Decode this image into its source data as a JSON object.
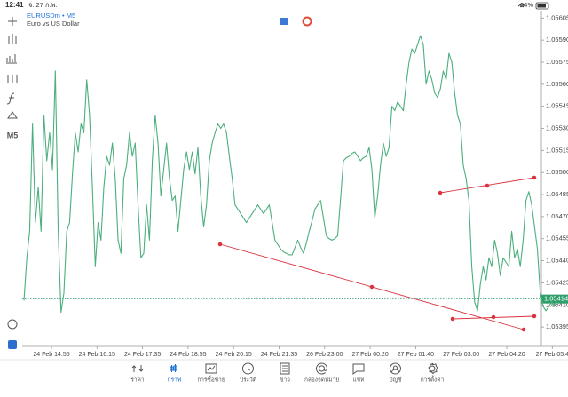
{
  "status_bar": {
    "time": "12:41",
    "date": "จ. 27 ก.พ.",
    "battery": "84%"
  },
  "toolbar": {
    "timeframe": "M5"
  },
  "chart_data": {
    "type": "line",
    "title": "EURUSDm • M5",
    "subtitle": "Euro vs US Dollar",
    "color": "#4caf7d",
    "values": [
      1.05413,
      1.05442,
      1.0546,
      1.05533,
      1.05466,
      1.0549,
      1.0546,
      1.05539,
      1.05508,
      1.05527,
      1.05502,
      1.05569,
      1.0546,
      1.05405,
      1.05418,
      1.0546,
      1.05466,
      1.05499,
      1.05527,
      1.05514,
      1.05533,
      1.05527,
      1.05563,
      1.05539,
      1.0549,
      1.05436,
      1.05466,
      1.05454,
      1.0549,
      1.05511,
      1.05505,
      1.0552,
      1.05496,
      1.05454,
      1.05445,
      1.05496,
      1.05505,
      1.05527,
      1.05511,
      1.0552,
      1.05478,
      1.05442,
      1.05445,
      1.05478,
      1.05454,
      1.05508,
      1.05539,
      1.0552,
      1.05484,
      1.05502,
      1.0552,
      1.05496,
      1.05481,
      1.05484,
      1.0546,
      1.05481,
      1.05502,
      1.05514,
      1.05502,
      1.05514,
      1.05499,
      1.05517,
      1.05484,
      1.05463,
      1.05478,
      1.05508,
      1.0552,
      1.05527,
      1.05533,
      1.0553,
      1.05533,
      1.05527,
      1.05511,
      1.05496,
      1.05478,
      1.05475,
      1.05472,
      1.05469,
      1.05466,
      1.05469,
      1.05472,
      1.05475,
      1.05478,
      1.05475,
      1.05472,
      1.05475,
      1.05478,
      1.05466,
      1.05454,
      1.05451,
      1.05448,
      1.05446,
      1.05445,
      1.05444,
      1.05444,
      1.05449,
      1.05454,
      1.05449,
      1.05445,
      1.05452,
      1.0546,
      1.05467,
      1.05475,
      1.05478,
      1.05481,
      1.05469,
      1.05457,
      1.05455,
      1.05454,
      1.05455,
      1.05457,
      1.05482,
      1.05508,
      1.0551,
      1.05511,
      1.05513,
      1.05514,
      1.05511,
      1.05508,
      1.0551,
      1.05511,
      1.05517,
      1.05502,
      1.05469,
      1.05484,
      1.05505,
      1.0552,
      1.05511,
      1.05517,
      1.05545,
      1.05542,
      1.05548,
      1.05545,
      1.05542,
      1.0556,
      1.05575,
      1.05584,
      1.05581,
      1.05587,
      1.05593,
      1.05587,
      1.0556,
      1.05569,
      1.05563,
      1.05554,
      1.05551,
      1.05557,
      1.05569,
      1.05563,
      1.05581,
      1.05575,
      1.05554,
      1.05539,
      1.05533,
      1.05505,
      1.05496,
      1.05481,
      1.05436,
      1.05412,
      1.05406,
      1.05424,
      1.05436,
      1.05427,
      1.05442,
      1.05436,
      1.05454,
      1.05445,
      1.0543,
      1.05442,
      1.05439,
      1.05436,
      1.0546,
      1.05442,
      1.05448,
      1.05436,
      1.05454,
      1.05481,
      1.05487,
      1.05478,
      1.05463,
      1.05448,
      1.05418,
      1.05409,
      1.05406,
      1.05409,
      1.05412,
      1.05409,
      1.05413
    ],
    "ylim": [
      1.05383,
      1.0561
    ],
    "yticks": [
      1.05605,
      {
        "value": 1.0559,
        "label": "1.05590"
      },
      1.05575,
      {
        "value": 1.0556,
        "label": "1.05560"
      },
      1.05545,
      {
        "value": 1.0553,
        "label": "1.05530"
      },
      1.05515,
      {
        "value": 1.055,
        "label": "1.05500"
      },
      1.05485,
      {
        "value": 1.0547,
        "label": "1.05470"
      },
      1.05455,
      {
        "value": 1.0544,
        "label": "1.05440"
      },
      1.05425,
      {
        "value": 1.0541,
        "label": "1.05410"
      },
      1.05395
    ],
    "xtick_labels": [
      "24 Feb 14:55",
      "24 Feb 16:15",
      "24 Feb 17:35",
      "24 Feb 18:55",
      "24 Feb 20:15",
      "24 Feb 21:35",
      "26 Feb 23:00",
      "27 Feb 00:20",
      "27 Feb 01:40",
      "27 Feb 03:00",
      "27 Feb 04:20",
      "27 Feb 05:4"
    ],
    "current_price": 1.05414,
    "current_price_color": "#2e9e6b",
    "grid": false
  },
  "tabs": [
    "ราคา",
    "กราฟ",
    "การซื้อขาย",
    "ประวัติ",
    "ข่าว",
    "กล่องจดหมาย",
    "แชท",
    "บัญชี",
    "การตั้งค่า"
  ],
  "active_tab": 1,
  "active_color": "#1e6fd9"
}
